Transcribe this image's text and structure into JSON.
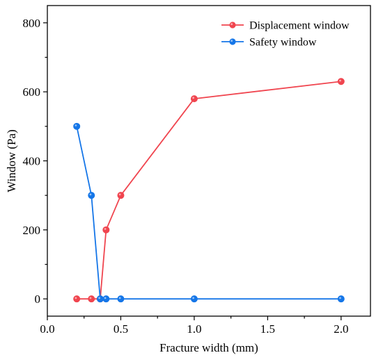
{
  "chart_data": {
    "type": "line",
    "title": "",
    "xlabel": "Fracture width (mm)",
    "ylabel": "Window (Pa)",
    "xlim": [
      0.0,
      2.2
    ],
    "ylim": [
      -50,
      850
    ],
    "xticks": [
      0.0,
      0.5,
      1.0,
      1.5,
      2.0
    ],
    "xtick_labels": [
      "0.0",
      "0.5",
      "1.0",
      "1.5",
      "2.0"
    ],
    "yticks": [
      0,
      200,
      400,
      600,
      800
    ],
    "ytick_labels": [
      "0",
      "200",
      "400",
      "600",
      "800"
    ],
    "grid": false,
    "legend_position": "top-right",
    "series": [
      {
        "name": "Displacement window",
        "color": "#f0454f",
        "x": [
          0.2,
          0.3,
          0.36,
          0.4,
          0.5,
          1.0,
          2.0
        ],
        "y": [
          0,
          0,
          0,
          200,
          300,
          580,
          630
        ]
      },
      {
        "name": "Safety window",
        "color": "#1576e8",
        "x": [
          0.2,
          0.3,
          0.36,
          0.4,
          0.5,
          1.0,
          2.0
        ],
        "y": [
          500,
          300,
          0,
          0,
          0,
          0,
          0
        ]
      }
    ]
  }
}
